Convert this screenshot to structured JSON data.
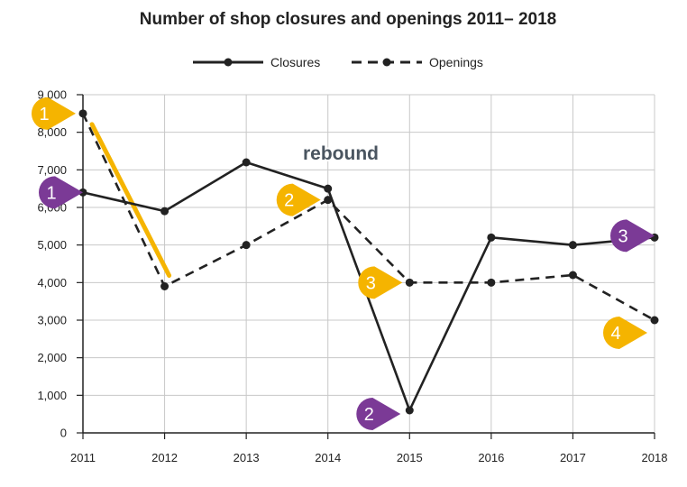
{
  "chart_data": {
    "type": "line",
    "title": "Number of shop closures and openings 2011– 2018",
    "xlabel": "",
    "ylabel": "",
    "x": [
      "2011",
      "2012",
      "2013",
      "2014",
      "2015",
      "2016",
      "2017",
      "2018"
    ],
    "ylim": [
      0,
      9000
    ],
    "yticks": [
      0,
      1000,
      2000,
      3000,
      4000,
      5000,
      6000,
      7000,
      8000,
      9000
    ],
    "ytick_labels": [
      "0",
      "1,000",
      "2,000",
      "3,000",
      "4,000",
      "5,000",
      "6,000",
      "7,000",
      "8,000",
      "9,000"
    ],
    "grid": true,
    "legend": "top-center",
    "series": [
      {
        "name": "Closures",
        "style": "solid",
        "color": "#222222",
        "values": [
          6400,
          5900,
          7200,
          6500,
          600,
          5200,
          5000,
          5200
        ]
      },
      {
        "name": "Openings",
        "style": "dashed",
        "color": "#222222",
        "values": [
          8500,
          3900,
          5000,
          6200,
          4000,
          4000,
          4200,
          3000
        ]
      }
    ],
    "annotations": {
      "text": "rebound",
      "highlight_color": "#f5b400",
      "openings_markers_color": "#f5b400",
      "closures_markers_color": "#7b3a96",
      "openings_markers": [
        {
          "label": "1",
          "year": "2011",
          "value": 8500
        },
        {
          "label": "2",
          "year": "2014",
          "value": 6200
        },
        {
          "label": "3",
          "year": "2015",
          "value": 4000
        },
        {
          "label": "4",
          "year": "2018",
          "value": 3000
        }
      ],
      "closures_markers": [
        {
          "label": "1",
          "year": "2011",
          "value": 6400
        },
        {
          "label": "2",
          "year": "2015",
          "value": 600
        },
        {
          "label": "3",
          "year": "2018",
          "value": 5200
        }
      ]
    }
  }
}
